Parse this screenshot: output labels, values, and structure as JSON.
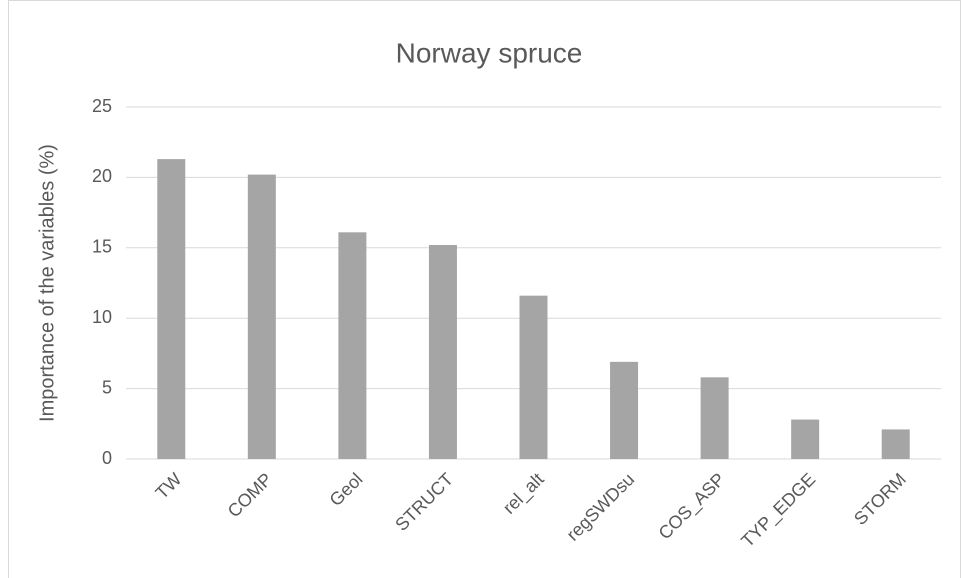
{
  "chart_data": {
    "type": "bar",
    "title": "Norway spruce",
    "y_label": "Importance of the variables (%)",
    "categories": [
      "TW",
      "COMP",
      "Geol",
      "STRUCT",
      "rel_alt",
      "regSWDsu",
      "COS_ASP",
      "TYP_EDGE",
      "STORM"
    ],
    "values": [
      21.3,
      20.2,
      16.1,
      15.2,
      11.6,
      6.9,
      5.8,
      2.8,
      2.1
    ],
    "color": "#a5a5a5",
    "ylim": [
      0,
      25
    ],
    "yticks": [
      0,
      5,
      10,
      15,
      20,
      25
    ],
    "grid": true
  }
}
